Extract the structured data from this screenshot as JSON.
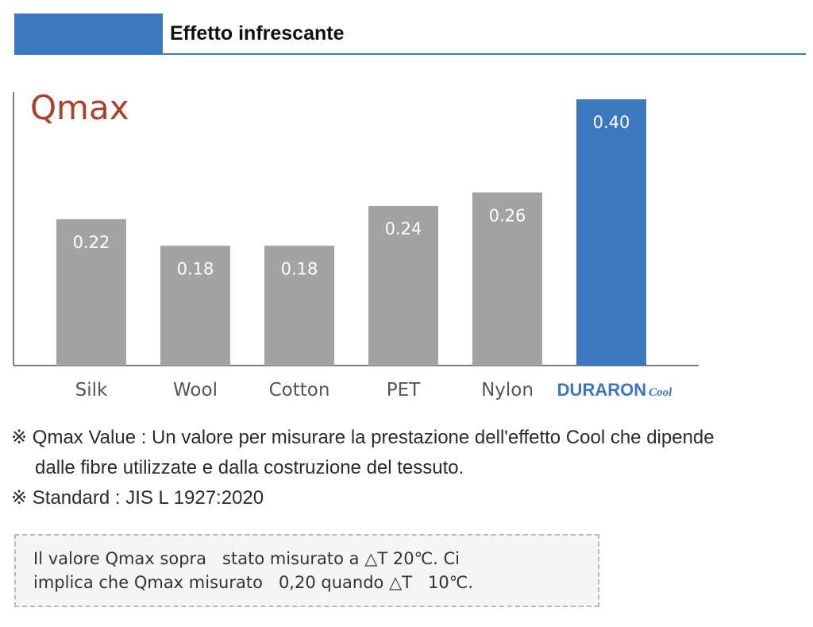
{
  "header": {
    "title": "Effetto infrescante",
    "accent_color": "#3c78bd"
  },
  "chart_data": {
    "type": "bar",
    "title": "Qmax",
    "categories": [
      "Silk",
      "Wool",
      "Cotton",
      "PET",
      "Nylon",
      "DURARON Cool"
    ],
    "values": [
      0.22,
      0.18,
      0.18,
      0.24,
      0.26,
      0.4
    ],
    "value_labels": [
      "0.22",
      "0.18",
      "0.18",
      "0.24",
      "0.26",
      "0.40"
    ],
    "bar_colors": [
      "#a3a3a3",
      "#a3a3a3",
      "#a3a3a3",
      "#a3a3a3",
      "#a3a3a3",
      "#3c78bd"
    ],
    "highlight": {
      "brand_word": "DURARON",
      "brand_suffix": "Cool",
      "color": "#3c78bd"
    },
    "title_color": "#a8402b",
    "ylim": [
      0,
      0.4
    ],
    "xlabel": "",
    "ylabel": "",
    "grid": false
  },
  "notes": [
    "※ Qmax Value : Un valore per misurare la prestazione dell'effetto Cool che dipende",
    "dalle fibre utilizzate e dalla costruzione del tessuto.",
    "※ Standard : JIS L 1927:2020"
  ],
  "info_box": {
    "lines": [
      "Il valore Qmax sopra   stato misurato a △T 20℃. Ci",
      "implica che Qmax misurato   0,20 quando △T   10℃."
    ]
  }
}
